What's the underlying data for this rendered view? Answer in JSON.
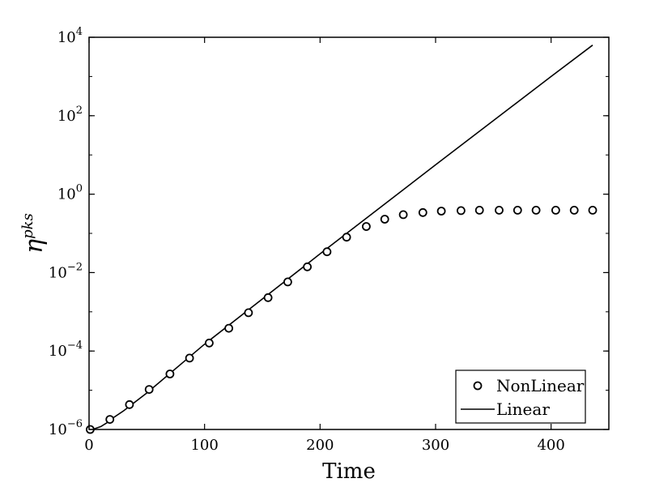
{
  "chart_data": {
    "type": "line",
    "xlabel": "Time",
    "ylabel": {
      "base": "η",
      "superscript": "pks"
    },
    "yscale": "log",
    "xlim": [
      0,
      450
    ],
    "ylim_log10": [
      -6,
      4
    ],
    "xticks": [
      0,
      100,
      200,
      300,
      400
    ],
    "xtick_labels": [
      "0",
      "100",
      "200",
      "300",
      "400"
    ],
    "yticks_log10": [
      -6,
      -4,
      -2,
      0,
      2,
      4
    ],
    "ytick_labels": [
      {
        "base": "10",
        "exp": "−6"
      },
      {
        "base": "10",
        "exp": "−4"
      },
      {
        "base": "10",
        "exp": "−2"
      },
      {
        "base": "10",
        "exp": "0"
      },
      {
        "base": "10",
        "exp": "2"
      },
      {
        "base": "10",
        "exp": "4"
      }
    ],
    "grid": false,
    "legend_position": "bottom-right",
    "legend": [
      {
        "label": "NonLinear",
        "marker": "circle"
      },
      {
        "label": "Linear",
        "marker": "line"
      }
    ],
    "series": [
      {
        "name": "NonLinear",
        "style": "markers",
        "x": [
          1,
          18,
          35,
          52,
          70,
          87,
          104,
          121,
          138,
          155,
          172,
          189,
          206,
          223,
          240,
          256,
          272,
          289,
          305,
          322,
          338,
          355,
          371,
          387,
          404,
          420,
          436
        ],
        "y": [
          1e-06,
          1.8e-06,
          4.3e-06,
          1.05e-05,
          2.6e-05,
          6.6e-05,
          0.00016,
          0.00038,
          0.00095,
          0.0023,
          0.0058,
          0.014,
          0.034,
          0.08,
          0.15,
          0.23,
          0.3,
          0.34,
          0.37,
          0.38,
          0.39,
          0.39,
          0.39,
          0.39,
          0.39,
          0.39,
          0.39
        ]
      },
      {
        "name": "Linear",
        "style": "line",
        "x": [
          0,
          5,
          10,
          15,
          20,
          30,
          50,
          100,
          200,
          300,
          400,
          436
        ],
        "y": [
          1e-06,
          1.05e-06,
          1.18e-06,
          1.45e-06,
          1.9e-06,
          3e-06,
          8.5e-06,
          0.00015,
          0.03,
          5.6,
          1000,
          6300
        ]
      }
    ],
    "colors": {
      "line": "#000000",
      "marker_stroke": "#000000",
      "marker_fill": "#ffffff"
    }
  }
}
